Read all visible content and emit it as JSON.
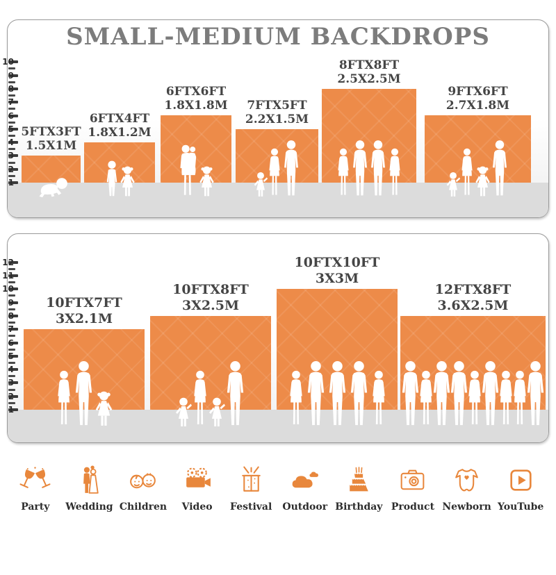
{
  "title": "SMALL-MEDIUM BACKDROPS",
  "colors": {
    "backdrop_orange": "#ED8B49",
    "icon_orange": "#E8873C",
    "title_gray": "#7C7C7C",
    "label_dark": "#454545",
    "floor_gray": "#DCDCDC",
    "tick_dark": "#3B3B3B",
    "silhouette_white": "#FFFFFF"
  },
  "panels": [
    {
      "name": "small-medium-backdrops",
      "ruler_ticks": [
        10,
        9,
        8,
        7,
        6,
        5,
        4,
        3,
        2,
        1
      ],
      "backdrops": [
        {
          "size_ft": "5FTX3FT",
          "size_m": "1.5X1M",
          "w_ft": 5,
          "h_ft": 3,
          "figures": [
            "crawling-baby"
          ]
        },
        {
          "size_ft": "6FTX4FT",
          "size_m": "1.8X1.2M",
          "w_ft": 6,
          "h_ft": 4,
          "figures": [
            "boy",
            "girl"
          ]
        },
        {
          "size_ft": "6FTX6FT",
          "size_m": "1.8X1.8M",
          "w_ft": 6,
          "h_ft": 6,
          "figures": [
            "woman-holding-baby",
            "girl"
          ]
        },
        {
          "size_ft": "7FTX5FT",
          "size_m": "2.2X1.5M",
          "w_ft": 7,
          "h_ft": 5,
          "figures": [
            "toddler",
            "woman",
            "man"
          ]
        },
        {
          "size_ft": "8FTX8FT",
          "size_m": "2.5X2.5M",
          "w_ft": 8,
          "h_ft": 8,
          "figures": [
            "woman",
            "man",
            "man",
            "woman"
          ]
        },
        {
          "size_ft": "9FTX6FT",
          "size_m": "2.7X1.8M",
          "w_ft": 9,
          "h_ft": 6,
          "figures": [
            "toddler",
            "woman",
            "girl",
            "man"
          ]
        }
      ]
    },
    {
      "name": "large-backdrops",
      "ruler_ticks": [
        12,
        11,
        10,
        9,
        8,
        7,
        6,
        5,
        4,
        3,
        2,
        1
      ],
      "backdrops": [
        {
          "size_ft": "10FTX7FT",
          "size_m": "3X2.1M",
          "w_ft": 10,
          "h_ft": 7,
          "figures": [
            "woman",
            "man",
            "girl"
          ]
        },
        {
          "size_ft": "10FTX8FT",
          "size_m": "3X2.5M",
          "w_ft": 10,
          "h_ft": 8,
          "figures": [
            "toddler",
            "woman",
            "toddler",
            "man"
          ]
        },
        {
          "size_ft": "10FTX10FT",
          "size_m": "3X3M",
          "w_ft": 10,
          "h_ft": 10,
          "figures": [
            "woman",
            "man",
            "man",
            "man",
            "woman"
          ]
        },
        {
          "size_ft": "12FTX8FT",
          "size_m": "3.6X2.5M",
          "w_ft": 12,
          "h_ft": 8,
          "figures": [
            "man",
            "woman",
            "man",
            "man",
            "woman",
            "man",
            "woman",
            "woman",
            "man"
          ]
        }
      ]
    }
  ],
  "categories": [
    {
      "label": "Party",
      "icon": "party-icon"
    },
    {
      "label": "Wedding",
      "icon": "wedding-icon"
    },
    {
      "label": "Children",
      "icon": "children-icon"
    },
    {
      "label": "Video",
      "icon": "video-icon"
    },
    {
      "label": "Festival",
      "icon": "festival-icon"
    },
    {
      "label": "Outdoor",
      "icon": "outdoor-icon"
    },
    {
      "label": "Birthday",
      "icon": "birthday-icon"
    },
    {
      "label": "Product",
      "icon": "product-icon"
    },
    {
      "label": "Newborn",
      "icon": "newborn-icon"
    },
    {
      "label": "YouTube",
      "icon": "youtube-icon"
    }
  ]
}
